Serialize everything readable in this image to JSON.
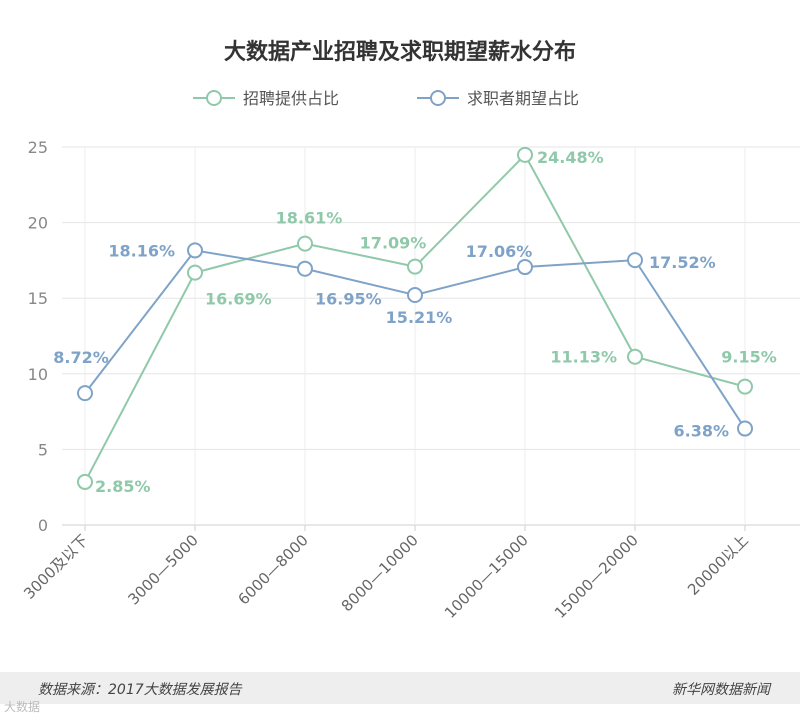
{
  "chart_data": {
    "type": "line",
    "title": "大数据产业招聘及求职期望薪水分布",
    "categories": [
      "3000及以下",
      "3000—5000",
      "6000—8000",
      "8000—10000",
      "10000—15000",
      "15000—20000",
      "20000以上"
    ],
    "ylim": [
      0,
      25
    ],
    "yticks": [
      0,
      5,
      10,
      15,
      20,
      25
    ],
    "grid": true,
    "legend_position": "top-center",
    "series": [
      {
        "name": "招聘提供占比",
        "color": "#8fc9a9",
        "values": [
          2.85,
          16.69,
          18.61,
          17.09,
          24.48,
          11.13,
          9.15
        ],
        "labels": [
          "2.85%",
          "16.69%",
          "18.61%",
          "17.09%",
          "24.48%",
          "11.13%",
          "9.15%"
        ]
      },
      {
        "name": "求职者期望占比",
        "color": "#7fa3c8",
        "values": [
          8.72,
          18.16,
          16.95,
          15.21,
          17.06,
          17.52,
          6.38
        ],
        "labels": [
          "8.72%",
          "18.16%",
          "16.95%",
          "15.21%",
          "17.06%",
          "17.52%",
          "6.38%"
        ]
      }
    ]
  },
  "footer": {
    "source": "数据来源：2017大数据发展报告",
    "publisher": "新华网数据新闻"
  },
  "watermark": "大数据"
}
